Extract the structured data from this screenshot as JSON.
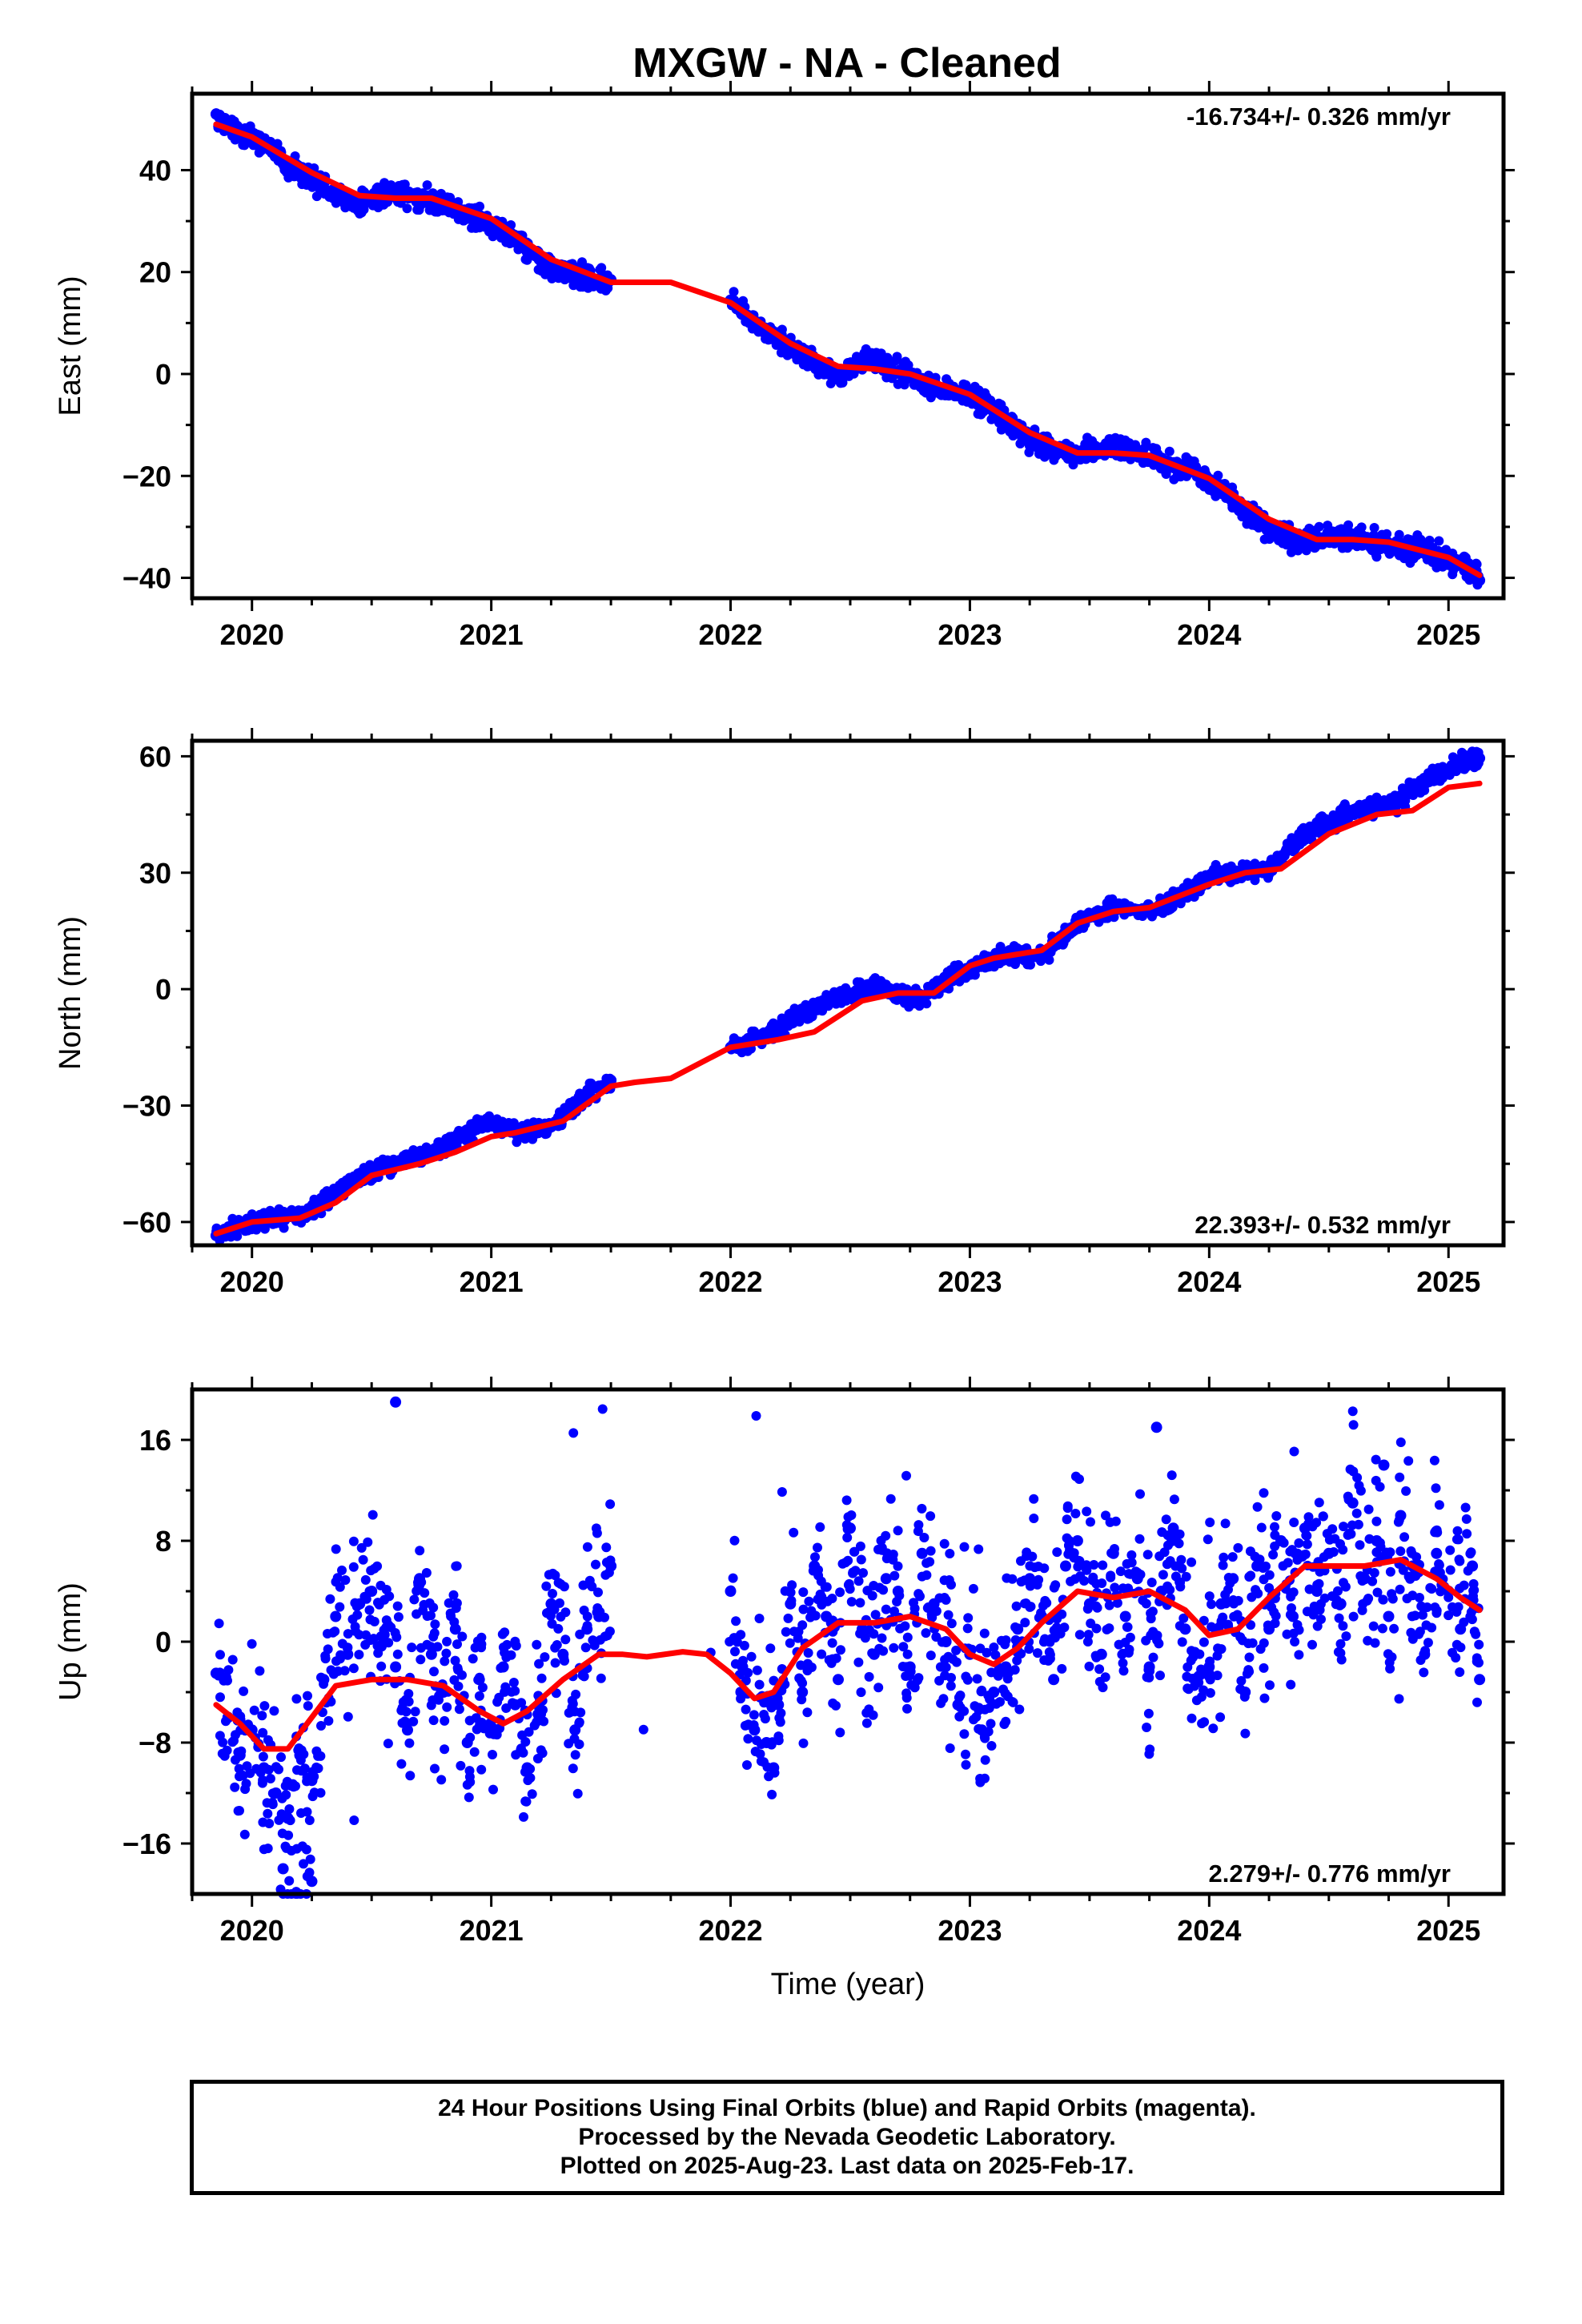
{
  "title": "MXGW  - NA - Cleaned",
  "colors": {
    "observations": "#0000ff",
    "model": "#ff0000",
    "frame": "#000000"
  },
  "chart_data": [
    {
      "type": "scatter",
      "component": "east",
      "ylabel": "East (mm)",
      "xlabel": "",
      "ylim": [
        -44,
        55
      ],
      "xlim": [
        2019.75,
        2025.23
      ],
      "yticks": [
        40,
        20,
        0,
        -20,
        -40
      ],
      "ytick_labels": [
        "40",
        "20",
        "0",
        "−20",
        "−40"
      ],
      "xticks": [
        2020,
        2021,
        2022,
        2023,
        2024,
        2025
      ],
      "xtick_labels": [
        "2020",
        "2021",
        "2022",
        "2023",
        "2024",
        "2025"
      ],
      "rate_label": "-16.734+/- 0.326 mm/yr",
      "rate_position": "top-right",
      "data_gap": [
        2021.5,
        2021.98
      ],
      "model_curve": {
        "name": "model fit",
        "x": [
          2019.85,
          2020.0,
          2020.25,
          2020.45,
          2020.6,
          2020.75,
          2021.0,
          2021.25,
          2021.5,
          2021.75,
          2022.0,
          2022.25,
          2022.45,
          2022.6,
          2022.75,
          2023.0,
          2023.25,
          2023.45,
          2023.6,
          2023.75,
          2024.0,
          2024.25,
          2024.45,
          2024.6,
          2024.75,
          2025.0,
          2025.13
        ],
        "y": [
          49,
          46.5,
          39.5,
          35,
          34.5,
          34.5,
          30.5,
          22.5,
          18,
          18,
          14,
          6,
          1.5,
          1,
          0,
          -4,
          -11.5,
          -15.5,
          -15.5,
          -16,
          -20.5,
          -28.5,
          -32.5,
          -32.5,
          -33,
          -36,
          -39.5
        ]
      },
      "observations": {
        "name": "observations",
        "x": [
          2019.85,
          2019.9,
          2019.95,
          2020.0,
          2020.05,
          2020.1,
          2020.15,
          2020.2,
          2020.25,
          2020.3,
          2020.35,
          2020.4,
          2020.45,
          2020.5,
          2020.55,
          2020.6,
          2020.65,
          2020.7,
          2020.75,
          2020.8,
          2020.85,
          2020.9,
          2020.95,
          2021.0,
          2021.05,
          2021.1,
          2021.15,
          2021.2,
          2021.25,
          2021.3,
          2021.35,
          2021.4,
          2021.45,
          2021.5,
          2022.0,
          2022.05,
          2022.1,
          2022.15,
          2022.2,
          2022.25,
          2022.3,
          2022.35,
          2022.4,
          2022.45,
          2022.5,
          2022.55,
          2022.6,
          2022.65,
          2022.7,
          2022.75,
          2022.8,
          2022.85,
          2022.9,
          2022.95,
          2023.0,
          2023.05,
          2023.1,
          2023.15,
          2023.2,
          2023.25,
          2023.3,
          2023.35,
          2023.4,
          2023.45,
          2023.5,
          2023.55,
          2023.6,
          2023.65,
          2023.7,
          2023.75,
          2023.8,
          2023.85,
          2023.9,
          2023.95,
          2024.0,
          2024.05,
          2024.1,
          2024.15,
          2024.2,
          2024.25,
          2024.3,
          2024.35,
          2024.4,
          2024.45,
          2024.5,
          2024.55,
          2024.6,
          2024.65,
          2024.7,
          2024.75,
          2024.8,
          2024.85,
          2024.9,
          2024.95,
          2025.0,
          2025.05,
          2025.1,
          2025.13
        ],
        "y": [
          51,
          49,
          47.5,
          46,
          45,
          43,
          41,
          39.5,
          38,
          36.5,
          35,
          34,
          33.5,
          34,
          35,
          35.5,
          35,
          34.5,
          34,
          33,
          32.5,
          31.5,
          30.5,
          29.5,
          28,
          26,
          24,
          22.5,
          21,
          20,
          19.5,
          19,
          18.5,
          18.5,
          14.5,
          12.5,
          10.5,
          8.5,
          7,
          5.5,
          3.5,
          2,
          0.5,
          0,
          1,
          2.5,
          3,
          2,
          0.5,
          -0.5,
          -1.5,
          -2.5,
          -3,
          -3.5,
          -4,
          -5.5,
          -7.5,
          -9,
          -11,
          -12.5,
          -14,
          -15,
          -15.5,
          -15.5,
          -15,
          -14.5,
          -14,
          -14.5,
          -15.5,
          -16.5,
          -17,
          -18,
          -18.5,
          -19.5,
          -21,
          -23,
          -25,
          -27,
          -29,
          -30.5,
          -31.5,
          -32,
          -32.5,
          -32.5,
          -32,
          -31.5,
          -32,
          -32.5,
          -33,
          -33.5,
          -34,
          -34.5,
          -35,
          -35.5,
          -36,
          -37.5,
          -39,
          -40.5
        ]
      }
    },
    {
      "type": "scatter",
      "component": "north",
      "ylabel": "North (mm)",
      "xlabel": "",
      "ylim": [
        -66,
        64
      ],
      "xlim": [
        2019.75,
        2025.23
      ],
      "yticks": [
        60,
        30,
        0,
        -30,
        -60
      ],
      "ytick_labels": [
        "60",
        "30",
        "0",
        "−30",
        "−60"
      ],
      "xticks": [
        2020,
        2021,
        2022,
        2023,
        2024,
        2025
      ],
      "xtick_labels": [
        "2020",
        "2021",
        "2022",
        "2023",
        "2024",
        "2025"
      ],
      "rate_label": "22.393+/- 0.532 mm/yr",
      "rate_position": "bottom-right",
      "data_gap": [
        2021.5,
        2021.98
      ],
      "model_curve": {
        "name": "model fit",
        "x": [
          2019.85,
          2020.0,
          2020.2,
          2020.35,
          2020.5,
          2020.7,
          2020.85,
          2021.0,
          2021.1,
          2021.3,
          2021.5,
          2021.6,
          2021.75,
          2022.0,
          2022.2,
          2022.35,
          2022.55,
          2022.7,
          2022.85,
          2023.0,
          2023.1,
          2023.3,
          2023.45,
          2023.6,
          2023.75,
          2024.0,
          2024.15,
          2024.3,
          2024.5,
          2024.7,
          2024.85,
          2025.0,
          2025.13
        ],
        "y": [
          -63,
          -60,
          -59,
          -55,
          -48,
          -45,
          -42,
          -38,
          -37,
          -34,
          -25,
          -24,
          -23,
          -15,
          -13,
          -11,
          -3,
          -1,
          -1,
          6,
          8,
          10,
          17,
          20,
          21,
          27,
          30,
          31,
          40,
          45,
          46,
          52,
          53
        ]
      },
      "observations": {
        "name": "observations",
        "x": [
          2019.85,
          2019.9,
          2019.95,
          2020.0,
          2020.05,
          2020.1,
          2020.15,
          2020.2,
          2020.25,
          2020.3,
          2020.35,
          2020.4,
          2020.45,
          2020.5,
          2020.55,
          2020.6,
          2020.65,
          2020.7,
          2020.75,
          2020.8,
          2020.85,
          2020.9,
          2020.95,
          2021.0,
          2021.05,
          2021.1,
          2021.15,
          2021.2,
          2021.25,
          2021.3,
          2021.35,
          2021.4,
          2021.45,
          2021.5,
          2022.0,
          2022.05,
          2022.1,
          2022.15,
          2022.2,
          2022.25,
          2022.3,
          2022.35,
          2022.4,
          2022.45,
          2022.5,
          2022.55,
          2022.6,
          2022.65,
          2022.7,
          2022.75,
          2022.8,
          2022.85,
          2022.9,
          2022.95,
          2023.0,
          2023.05,
          2023.1,
          2023.15,
          2023.2,
          2023.25,
          2023.3,
          2023.35,
          2023.4,
          2023.45,
          2023.5,
          2023.55,
          2023.6,
          2023.65,
          2023.7,
          2023.75,
          2023.8,
          2023.85,
          2023.9,
          2023.95,
          2024.0,
          2024.05,
          2024.1,
          2024.15,
          2024.2,
          2024.25,
          2024.3,
          2024.35,
          2024.4,
          2024.45,
          2024.5,
          2024.55,
          2024.6,
          2024.65,
          2024.7,
          2024.75,
          2024.8,
          2024.85,
          2024.9,
          2024.95,
          2025.0,
          2025.05,
          2025.1,
          2025.13
        ],
        "y": [
          -63.5,
          -62.5,
          -61,
          -60,
          -59.5,
          -59,
          -58.5,
          -58,
          -57,
          -55,
          -52,
          -50,
          -48,
          -46.5,
          -45.5,
          -45,
          -44,
          -43,
          -42,
          -40.5,
          -39,
          -37.5,
          -35.5,
          -34.5,
          -35,
          -36.5,
          -37,
          -36.5,
          -35.5,
          -33,
          -30,
          -27,
          -25,
          -23.5,
          -15,
          -14,
          -13,
          -12,
          -10,
          -8,
          -6.5,
          -5,
          -3.5,
          -2,
          -1,
          0,
          1,
          0.5,
          -1,
          -2.5,
          -2,
          0,
          2,
          4,
          5,
          6.5,
          7.5,
          8.5,
          9,
          8.5,
          9,
          11,
          14,
          16.5,
          18.5,
          20,
          20.5,
          21,
          20.5,
          20,
          21,
          23,
          25,
          27,
          28.5,
          29.5,
          29.5,
          30,
          30.5,
          31.5,
          34,
          37,
          39.5,
          41.5,
          43,
          44.5,
          45.5,
          46.5,
          47,
          47.5,
          49,
          51,
          53,
          55,
          56.5,
          58,
          59,
          59.5
        ]
      }
    },
    {
      "type": "scatter",
      "component": "up",
      "ylabel": "Up (mm)",
      "xlabel": "Time (year)",
      "ylim": [
        -20,
        20
      ],
      "xlim": [
        2019.75,
        2025.23
      ],
      "yticks": [
        16,
        8,
        0,
        -8,
        -16
      ],
      "ytick_labels": [
        "16",
        "8",
        "0",
        "−8",
        "−16"
      ],
      "xticks": [
        2020,
        2021,
        2022,
        2023,
        2024,
        2025
      ],
      "xtick_labels": [
        "2020",
        "2021",
        "2022",
        "2023",
        "2024",
        "2025"
      ],
      "rate_label": "2.279+/- 0.776 mm/yr",
      "rate_position": "bottom-right",
      "data_gap": [
        2021.5,
        2021.98
      ],
      "model_curve": {
        "name": "model fit",
        "x": [
          2019.85,
          2019.95,
          2020.05,
          2020.15,
          2020.25,
          2020.35,
          2020.5,
          2020.65,
          2020.8,
          2020.95,
          2021.05,
          2021.15,
          2021.3,
          2021.45,
          2021.55,
          2021.65,
          2021.8,
          2021.9,
          2022.0,
          2022.1,
          2022.18,
          2022.3,
          2022.45,
          2022.6,
          2022.75,
          2022.9,
          2023.0,
          2023.1,
          2023.2,
          2023.3,
          2023.45,
          2023.6,
          2023.75,
          2023.9,
          2024.0,
          2024.12,
          2024.25,
          2024.4,
          2024.5,
          2024.65,
          2024.8,
          2024.95,
          2025.05,
          2025.13
        ],
        "y": [
          -5,
          -6.5,
          -8.5,
          -8.5,
          -6,
          -3.5,
          -3,
          -3,
          -3.5,
          -5.5,
          -6.5,
          -5.5,
          -3,
          -1,
          -1,
          -1.2,
          -0.8,
          -1,
          -2.5,
          -4.5,
          -4,
          -0.5,
          1.5,
          1.5,
          2,
          1,
          -1,
          -1.8,
          -0.5,
          1.5,
          4,
          3.5,
          4,
          2.5,
          0.5,
          1,
          3.5,
          6,
          6,
          6,
          6.5,
          5,
          3.5,
          2.5
        ]
      },
      "observations": {
        "name": "observations",
        "x": [
          2019.85,
          2019.9,
          2019.95,
          2020.0,
          2020.05,
          2020.1,
          2020.15,
          2020.2,
          2020.25,
          2020.3,
          2020.35,
          2020.4,
          2020.45,
          2020.5,
          2020.55,
          2020.6,
          2020.65,
          2020.7,
          2020.75,
          2020.8,
          2020.85,
          2020.9,
          2020.95,
          2021.0,
          2021.05,
          2021.1,
          2021.15,
          2021.2,
          2021.25,
          2021.3,
          2021.35,
          2021.4,
          2021.45,
          2021.5,
          2022.0,
          2022.05,
          2022.1,
          2022.15,
          2022.2,
          2022.25,
          2022.3,
          2022.35,
          2022.4,
          2022.45,
          2022.5,
          2022.55,
          2022.6,
          2022.65,
          2022.7,
          2022.75,
          2022.8,
          2022.85,
          2022.9,
          2022.95,
          2023.0,
          2023.05,
          2023.1,
          2023.15,
          2023.2,
          2023.25,
          2023.3,
          2023.35,
          2023.4,
          2023.45,
          2023.5,
          2023.55,
          2023.6,
          2023.65,
          2023.7,
          2023.75,
          2023.8,
          2023.85,
          2023.9,
          2023.95,
          2024.0,
          2024.05,
          2024.1,
          2024.15,
          2024.2,
          2024.25,
          2024.3,
          2024.35,
          2024.4,
          2024.45,
          2024.5,
          2024.55,
          2024.6,
          2024.65,
          2024.7,
          2024.75,
          2024.8,
          2024.85,
          2024.9,
          2024.95,
          2025.0,
          2025.05,
          2025.1,
          2025.13,
          2020.6,
          2023.78,
          2020.13,
          2020.25,
          2024.73,
          2022.18
        ],
        "y": [
          -2.5,
          -6,
          -9,
          -7,
          -10,
          -12,
          -14,
          -9,
          -11,
          -3,
          2,
          -1,
          3,
          4,
          0,
          -2,
          -7,
          5,
          -1,
          -4,
          1,
          -8,
          -3,
          -7,
          -2,
          -5,
          -10,
          -6,
          3,
          -1,
          -7,
          1,
          2,
          6,
          4,
          -2,
          -7,
          -8,
          -5,
          3,
          -4,
          6,
          2,
          -3,
          9,
          1,
          -1,
          5,
          4,
          -2,
          7,
          3,
          0,
          -5,
          -1,
          -7,
          -4,
          -2,
          1,
          5,
          2,
          -3,
          6,
          8,
          3,
          -1,
          7,
          2,
          5,
          -2,
          4,
          9,
          1,
          -3,
          -2,
          3,
          5,
          -4,
          6,
          1,
          8,
          2,
          9,
          4,
          7,
          3,
          11,
          5,
          8,
          2,
          10,
          6,
          -1,
          7,
          4,
          1,
          6,
          -3,
          19,
          17,
          -18,
          -19,
          14,
          -10
        ]
      }
    }
  ],
  "footer": {
    "line1": "24 Hour Positions Using Final Orbits (blue) and Rapid Orbits (magenta).",
    "line2": "Processed by the Nevada Geodetic Laboratory.",
    "line3": "Plotted on 2025-Aug-23. Last data on 2025-Feb-17."
  }
}
